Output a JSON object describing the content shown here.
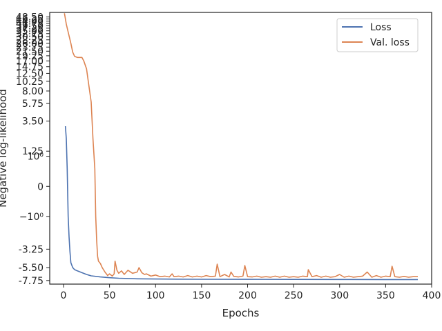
{
  "chart_data": {
    "type": "line",
    "xlabel": "Epochs",
    "ylabel": "Negative log-likelihood",
    "xlim": [
      -15,
      400
    ],
    "ylim": [
      -8.5,
      54
    ],
    "yscale": "symlog",
    "grid": false,
    "legend_position": "top-right",
    "x_ticks": [
      0,
      50,
      100,
      150,
      200,
      250,
      300,
      350,
      400
    ],
    "x_tick_labels": [
      "0",
      "50",
      "100",
      "150",
      "200",
      "250",
      "300",
      "350",
      "400"
    ],
    "y_ticks": [
      -7.75,
      -5.5,
      -3.25,
      -1,
      0,
      1,
      1.25,
      3.5,
      5.75,
      8,
      10.25,
      12.5,
      14.75,
      17,
      19.25,
      21.5,
      23.75,
      26,
      28.25,
      30.5,
      32.75,
      35,
      37.25,
      39.5,
      41.75,
      44,
      46.25,
      48.5
    ],
    "y_tick_labels": [
      "-7.75",
      "-5.50",
      "-3.25",
      "−10⁰",
      "0",
      "10⁰",
      "1.25",
      "3.50",
      "5.75",
      "8.00",
      "10.25",
      "12.50",
      "14.75",
      "17.00",
      "19.25",
      "21.50",
      "23.75",
      "26.00",
      "28.25",
      "30.50",
      "32.75",
      "35.00",
      "37.25",
      "39.50",
      "41.75",
      "44.00",
      "46.25",
      "48.50"
    ],
    "series": [
      {
        "name": "Loss",
        "color": "#4c72b0",
        "x": [
          2,
          3,
          4,
          5,
          6,
          7,
          8,
          10,
          12,
          15,
          20,
          25,
          30,
          40,
          50,
          60,
          80,
          100,
          150,
          200,
          250,
          300,
          350,
          385
        ],
        "y": [
          3.0,
          2.0,
          0.5,
          -1.0,
          -2.2,
          -3.5,
          -4.8,
          -5.5,
          -5.8,
          -6.0,
          -6.3,
          -6.6,
          -6.85,
          -7.05,
          -7.2,
          -7.3,
          -7.4,
          -7.45,
          -7.5,
          -7.52,
          -7.53,
          -7.54,
          -7.55,
          -7.55
        ]
      },
      {
        "name": "Val. loss",
        "color": "#dd8452",
        "x": [
          1,
          3,
          5,
          8,
          10,
          12,
          15,
          20,
          22,
          25,
          27,
          30,
          32,
          34,
          35,
          36,
          37,
          38,
          40,
          42,
          45,
          48,
          50,
          53,
          55,
          56,
          58,
          60,
          63,
          66,
          70,
          75,
          80,
          82,
          85,
          88,
          90,
          95,
          100,
          105,
          110,
          115,
          118,
          120,
          125,
          130,
          135,
          140,
          145,
          150,
          155,
          160,
          165,
          167,
          170,
          175,
          180,
          182,
          185,
          190,
          195,
          197,
          200,
          205,
          210,
          215,
          220,
          225,
          230,
          235,
          240,
          245,
          250,
          255,
          260,
          265,
          266,
          270,
          275,
          280,
          285,
          290,
          295,
          300,
          305,
          310,
          315,
          320,
          325,
          330,
          335,
          340,
          345,
          350,
          355,
          357,
          360,
          365,
          370,
          375,
          380,
          385
        ],
        "y": [
          53,
          41,
          34,
          26,
          21,
          19,
          18.5,
          18.5,
          17,
          14,
          10,
          6,
          2,
          0.5,
          -1.0,
          -2.5,
          -4.0,
          -4.6,
          -4.9,
          -5.5,
          -6.2,
          -6.8,
          -6.5,
          -6.9,
          -6.5,
          -4.6,
          -5.9,
          -6.4,
          -6.0,
          -6.6,
          -5.9,
          -6.4,
          -6.2,
          -5.5,
          -6.3,
          -6.6,
          -6.5,
          -6.9,
          -6.7,
          -7.0,
          -6.9,
          -7.05,
          -6.5,
          -7.0,
          -6.9,
          -7.05,
          -6.8,
          -7.05,
          -6.9,
          -7.05,
          -6.8,
          -7.0,
          -6.9,
          -5.0,
          -7.0,
          -6.6,
          -7.05,
          -6.2,
          -6.95,
          -7.05,
          -6.9,
          -5.2,
          -7.0,
          -7.05,
          -6.9,
          -7.1,
          -7.0,
          -7.1,
          -6.9,
          -7.1,
          -6.9,
          -7.1,
          -7.0,
          -7.1,
          -6.9,
          -7.0,
          -5.8,
          -7.0,
          -6.8,
          -7.1,
          -6.9,
          -7.1,
          -7.0,
          -6.6,
          -7.1,
          -6.9,
          -7.1,
          -7.0,
          -6.9,
          -6.2,
          -7.1,
          -6.8,
          -7.1,
          -6.9,
          -7.0,
          -5.3,
          -7.0,
          -7.1,
          -6.95,
          -7.1,
          -7.0,
          -7.0
        ]
      }
    ]
  }
}
